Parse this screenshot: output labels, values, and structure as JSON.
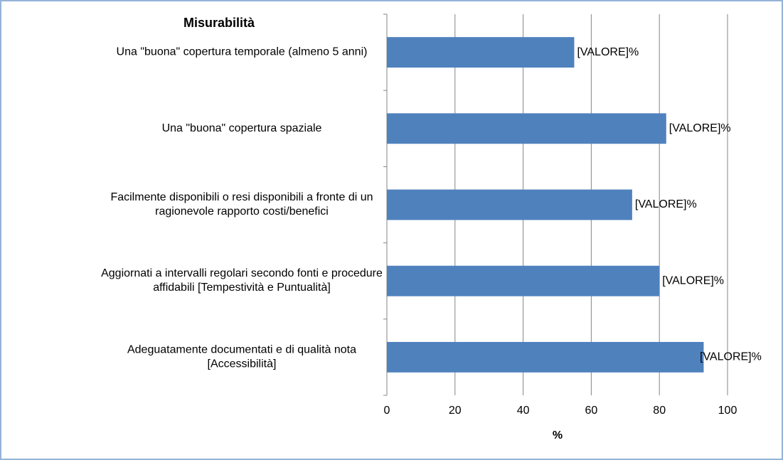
{
  "chart_data": {
    "type": "bar",
    "orientation": "horizontal",
    "title": "Misurabilità",
    "x_label": "%",
    "categories": [
      "Una \"buona\" copertura temporale (almeno 5 anni)",
      "Una \"buona\" copertura spaziale",
      "Facilmente disponibili o resi disponibili a fronte di un\nragionevole rapporto costi/benefici",
      "Aggiornati a intervalli regolari secondo fonti e procedure\naffidabili [Tempestività e Puntualità]",
      "Adeguatamente documentati e di qualità nota\n[Accessibilità]"
    ],
    "values": [
      55,
      82,
      72,
      80,
      93
    ],
    "value_labels": [
      "[VALORE]%",
      "[VALORE]%",
      "[VALORE]%",
      "[VALORE]%",
      "[VALORE]%"
    ],
    "color": "#4f81bd",
    "xlim": [
      0,
      100
    ],
    "xticks": [
      0,
      20,
      40,
      60,
      80,
      100
    ],
    "grid": true
  }
}
